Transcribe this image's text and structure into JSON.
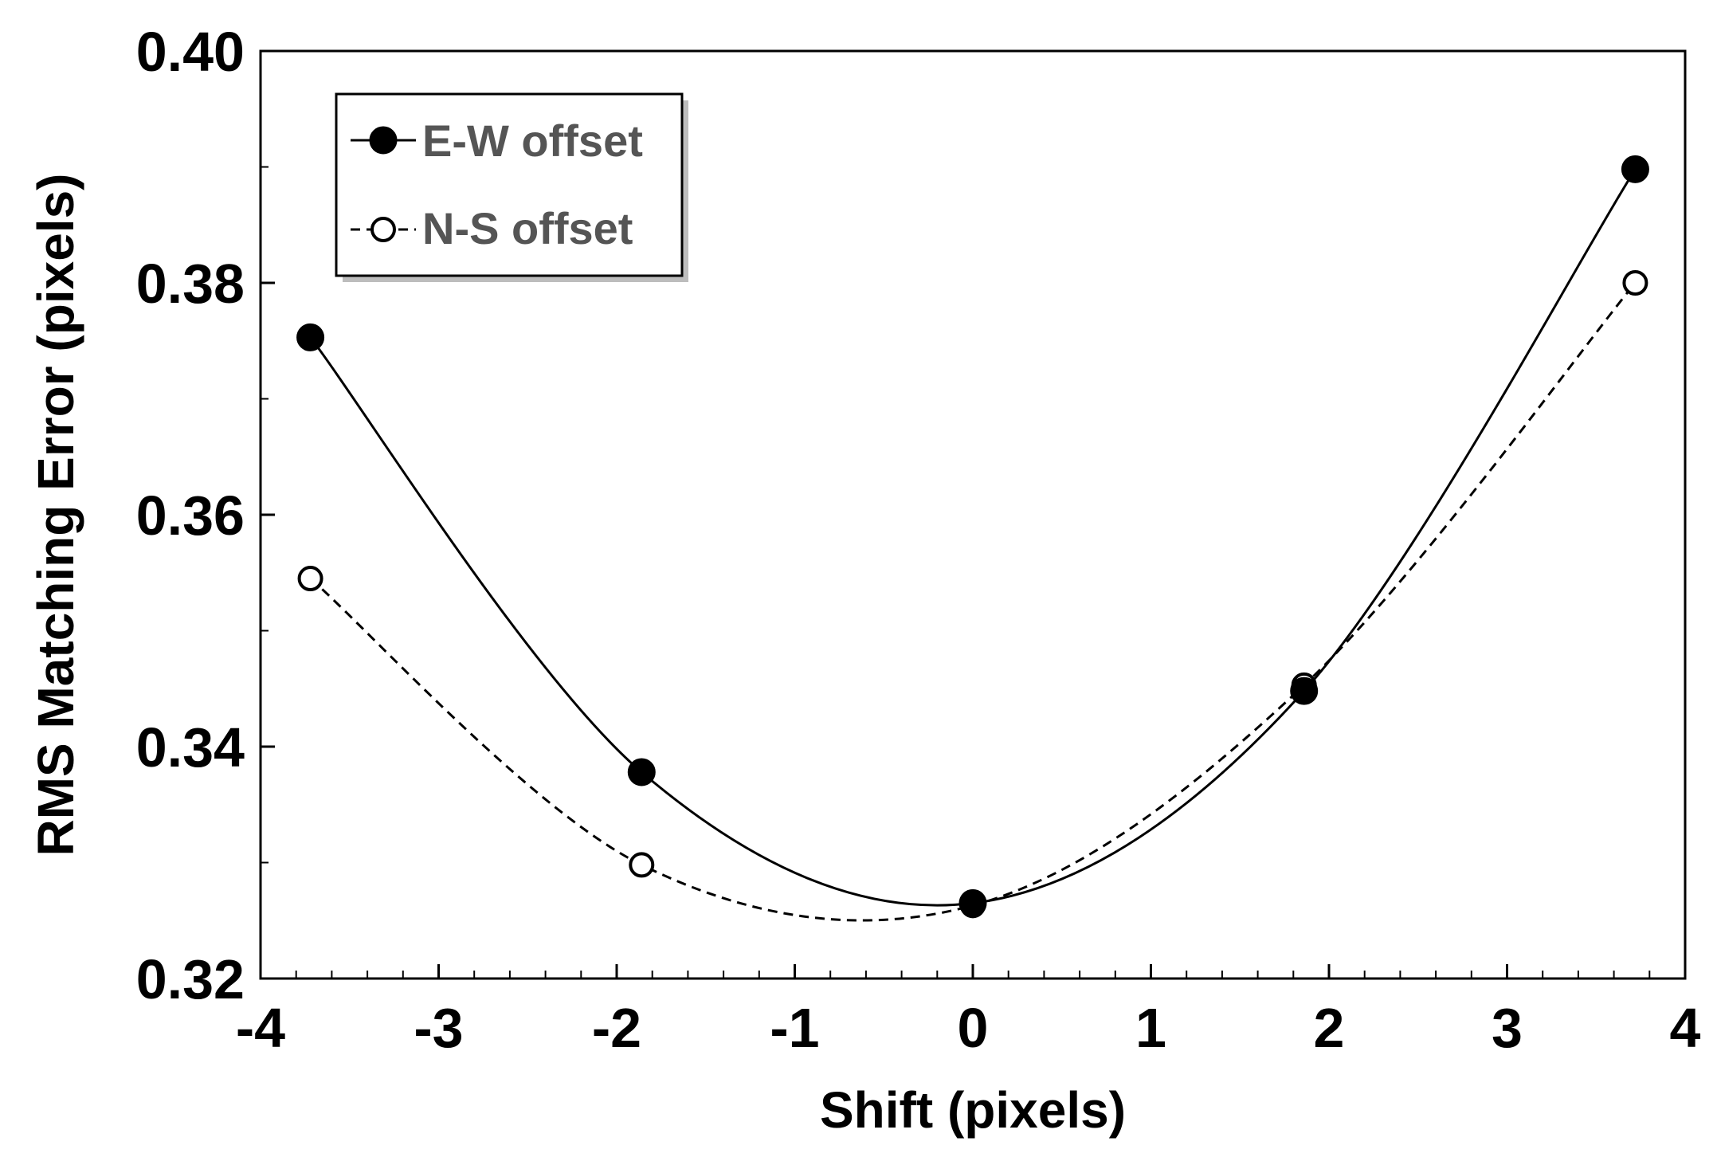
{
  "chart_data": {
    "type": "line",
    "title": "",
    "xlabel": "Shift (pixels)",
    "ylabel": "RMS Matching Error (pixels)",
    "xlim": [
      -4,
      4
    ],
    "ylim": [
      0.32,
      0.4
    ],
    "x_ticks": [
      -4,
      -3,
      -2,
      -1,
      0,
      1,
      2,
      3,
      4
    ],
    "x_tick_labels": [
      "-4",
      "-3",
      "-2",
      "-1",
      "0",
      "1",
      "2",
      "3",
      "4"
    ],
    "y_ticks": [
      0.32,
      0.34,
      0.36,
      0.38,
      0.4
    ],
    "y_tick_labels": [
      "0.32",
      "0.34",
      "0.36",
      "0.38",
      "0.40"
    ],
    "grid": false,
    "legend_position": "top-left",
    "series": [
      {
        "name": "E-W offset",
        "marker": "filled-circle",
        "line": "solid",
        "color": "#000000",
        "x": [
          -3.72,
          -1.86,
          0,
          1.86,
          3.72
        ],
        "y": [
          0.3753,
          0.3378,
          0.3265,
          0.3448,
          0.3898
        ]
      },
      {
        "name": "N-S offset",
        "marker": "open-circle",
        "line": "dashed",
        "color": "#000000",
        "x": [
          -3.72,
          -1.86,
          0,
          1.86,
          3.72
        ],
        "y": [
          0.3545,
          0.3298,
          0.3263,
          0.3453,
          0.38
        ]
      }
    ]
  }
}
